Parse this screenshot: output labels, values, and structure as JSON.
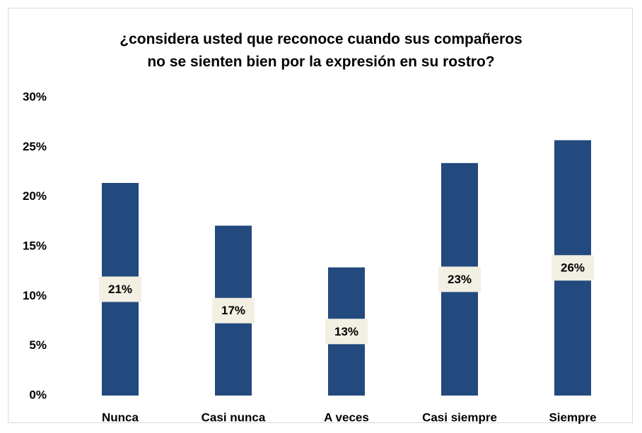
{
  "chart_data": {
    "type": "bar",
    "title": "¿considera usted que reconoce cuando sus compañeros no se sienten bien por la expresión en su rostro?",
    "categories": [
      "Nunca",
      "Casi nunca",
      "A veces",
      "Casi siempre",
      "Siempre"
    ],
    "values": [
      21.4,
      17.1,
      12.9,
      23.4,
      25.7
    ],
    "value_labels": [
      "21%",
      "17%",
      "13%",
      "23%",
      "26%"
    ],
    "color": "#234a7e",
    "ylim": [
      0,
      30
    ],
    "yticks": [
      {
        "value": 0,
        "label": "0%"
      },
      {
        "value": 5,
        "label": "5%"
      },
      {
        "value": 10,
        "label": "10%"
      },
      {
        "value": 15,
        "label": "15%"
      },
      {
        "value": 20,
        "label": "20%"
      },
      {
        "value": 25,
        "label": "25%"
      },
      {
        "value": 30,
        "label": "30%"
      }
    ],
    "grid": false
  }
}
